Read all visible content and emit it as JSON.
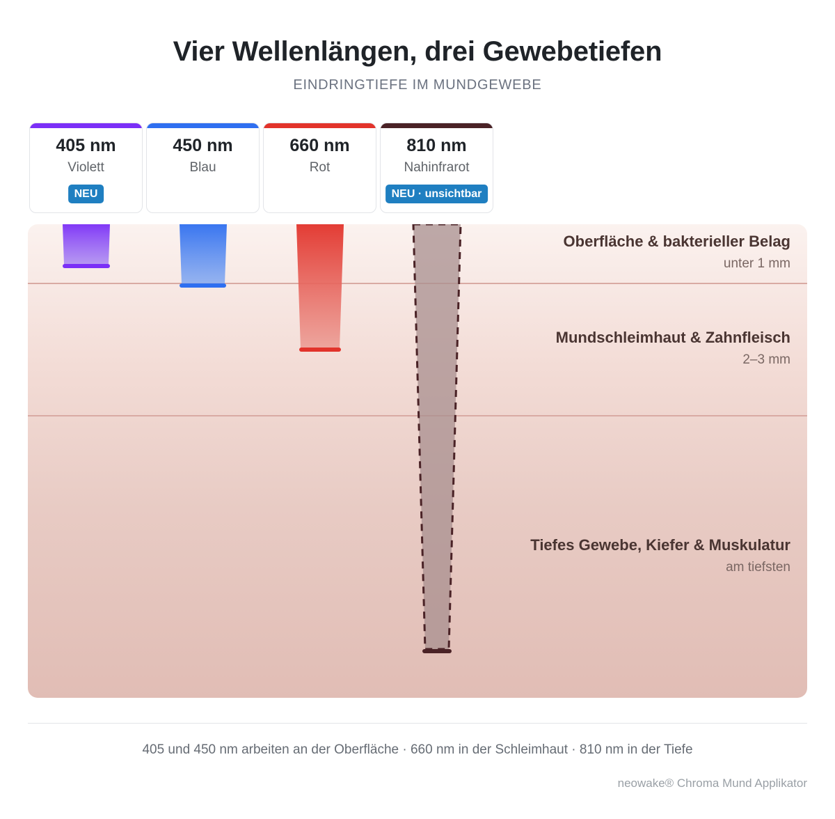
{
  "header": {
    "title": "Vier Wellenlängen, drei Gewebetiefen",
    "subtitle": "EINDRINGTIEFE IM MUNDGEWEBE"
  },
  "wavelengths": [
    {
      "nm": "405 nm",
      "name": "Violett",
      "badge": "NEU",
      "color": "#7b2ff7",
      "depth_layer": "Oberfläche & bakterieller Belag"
    },
    {
      "nm": "450 nm",
      "name": "Blau",
      "badge": "",
      "color": "#2f6ff0",
      "depth_layer": "Oberfläche & bakterieller Belag"
    },
    {
      "nm": "660 nm",
      "name": "Rot",
      "badge": "",
      "color": "#e2332b",
      "depth_layer": "Mundschleimhaut & Zahnfleisch"
    },
    {
      "nm": "810 nm",
      "name": "Nahinfrarot",
      "badge": "NEU · unsichtbar",
      "color": "#4a2226",
      "depth_layer": "Tiefes Gewebe, Kiefer & Muskulatur"
    }
  ],
  "layers": [
    {
      "title": "Oberfläche & bakterieller Belag",
      "depth": "unter 1 mm"
    },
    {
      "title": "Mundschleimhaut & Zahnfleisch",
      "depth": "2–3 mm"
    },
    {
      "title": "Tiefes Gewebe, Kiefer & Muskulatur",
      "depth": "am tiefsten"
    }
  ],
  "footer": {
    "caption": "405 und 450 nm arbeiten an der Oberfläche · 660 nm in der Schleimhaut · 810 nm in der Tiefe",
    "credit": "neowake® Chroma Mund Applikator"
  },
  "colors": {
    "badge": "#1f7fc1",
    "tissue_top": "#fbf2ef",
    "tissue_bottom": "#e1bdb5",
    "layer_line": "#d9aaa3"
  }
}
